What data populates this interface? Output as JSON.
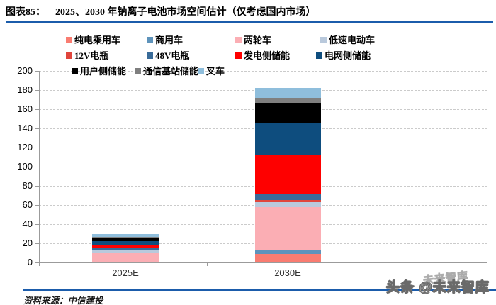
{
  "header": {
    "tag": "图表85：",
    "title": "2025、2030 年钠离子电池市场空间估计（仅考虑国内市场）"
  },
  "footer": {
    "source": "资料来源：中信建投"
  },
  "watermark": {
    "ghost": "未来智库",
    "main": "头条 @未来智库"
  },
  "colors": {
    "rule_blue": "#1B5CAB",
    "axis_gray": "#9B9B9B",
    "grid_gray": "#CBCBCB"
  },
  "chart_data": {
    "type": "bar",
    "stacked": true,
    "title": "2025、2030 年钠离子电池市场空间估计（仅考虑国内市场）",
    "categories": [
      "2025E",
      "2030E"
    ],
    "series": [
      {
        "name": "纯电乘用车",
        "color": "#F97C71",
        "values": [
          0.5,
          9
        ]
      },
      {
        "name": "商用车",
        "color": "#5E93BB",
        "values": [
          0.5,
          4
        ]
      },
      {
        "name": "两轮车",
        "color": "#FBAEB4",
        "values": [
          9,
          45
        ]
      },
      {
        "name": "低速电动车",
        "color": "#B9C9DC",
        "values": [
          3,
          5
        ]
      },
      {
        "name": "12V电瓶",
        "color": "#E0453C",
        "values": [
          0.5,
          2.5
        ]
      },
      {
        "name": "48V电瓶",
        "color": "#396B99",
        "values": [
          1,
          5.5
        ]
      },
      {
        "name": "发电侧储能",
        "color": "#FE0000",
        "values": [
          3,
          41
        ]
      },
      {
        "name": "电网侧储能",
        "color": "#0E4D7E",
        "values": [
          4.5,
          33
        ]
      },
      {
        "name": "用户侧储能",
        "color": "#000000",
        "values": [
          4,
          22
        ]
      },
      {
        "name": "通信基站储能",
        "color": "#7F7F7F",
        "values": [
          1,
          5
        ]
      },
      {
        "name": "叉车",
        "color": "#8FBEDC",
        "values": [
          3,
          10
        ]
      }
    ],
    "totals": [
      30,
      182
    ],
    "ylim": [
      0,
      200
    ],
    "ytick_interval": 20,
    "grid": true,
    "legend_position": "top"
  }
}
